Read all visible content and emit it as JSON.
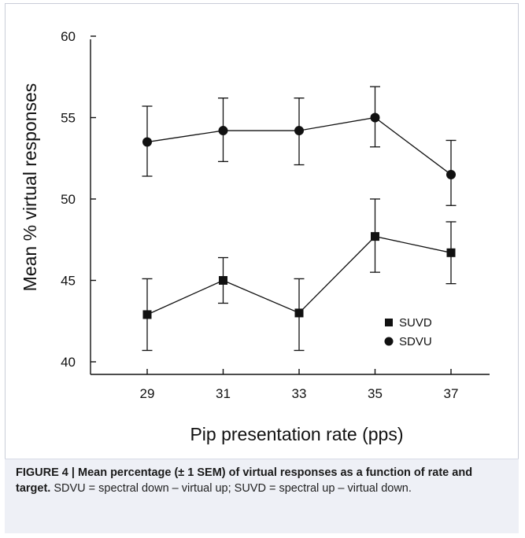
{
  "chart_data": {
    "type": "line",
    "xlabel": "Pip presentation rate (pps)",
    "ylabel": "Mean % virtual responses",
    "x": [
      29,
      31,
      33,
      35,
      37
    ],
    "ylim": [
      40,
      60
    ],
    "yticks": [
      40,
      45,
      50,
      55,
      60
    ],
    "error_bars": "± 1 SEM",
    "grid": false,
    "legend_position": "bottom-right",
    "series": [
      {
        "name": "SUVD",
        "marker": "square",
        "values": [
          42.9,
          45.0,
          43.0,
          47.7,
          46.7
        ],
        "error_upper": [
          45.1,
          46.4,
          45.1,
          50.0,
          48.6
        ],
        "error_lower": [
          40.7,
          43.6,
          40.7,
          45.5,
          44.8
        ]
      },
      {
        "name": "SDVU",
        "marker": "circle",
        "values": [
          53.5,
          54.2,
          54.2,
          55.0,
          51.5
        ],
        "error_upper": [
          55.7,
          56.2,
          56.2,
          56.9,
          53.6
        ],
        "error_lower": [
          51.4,
          52.3,
          52.1,
          53.2,
          49.6
        ]
      }
    ]
  },
  "caption": {
    "bold": "FIGURE 4 | Mean percentage (± 1 SEM) of virtual responses as a function of rate and target.",
    "text": " SDVU = spectral down – virtual up; SUVD = spectral up – virtual down."
  }
}
